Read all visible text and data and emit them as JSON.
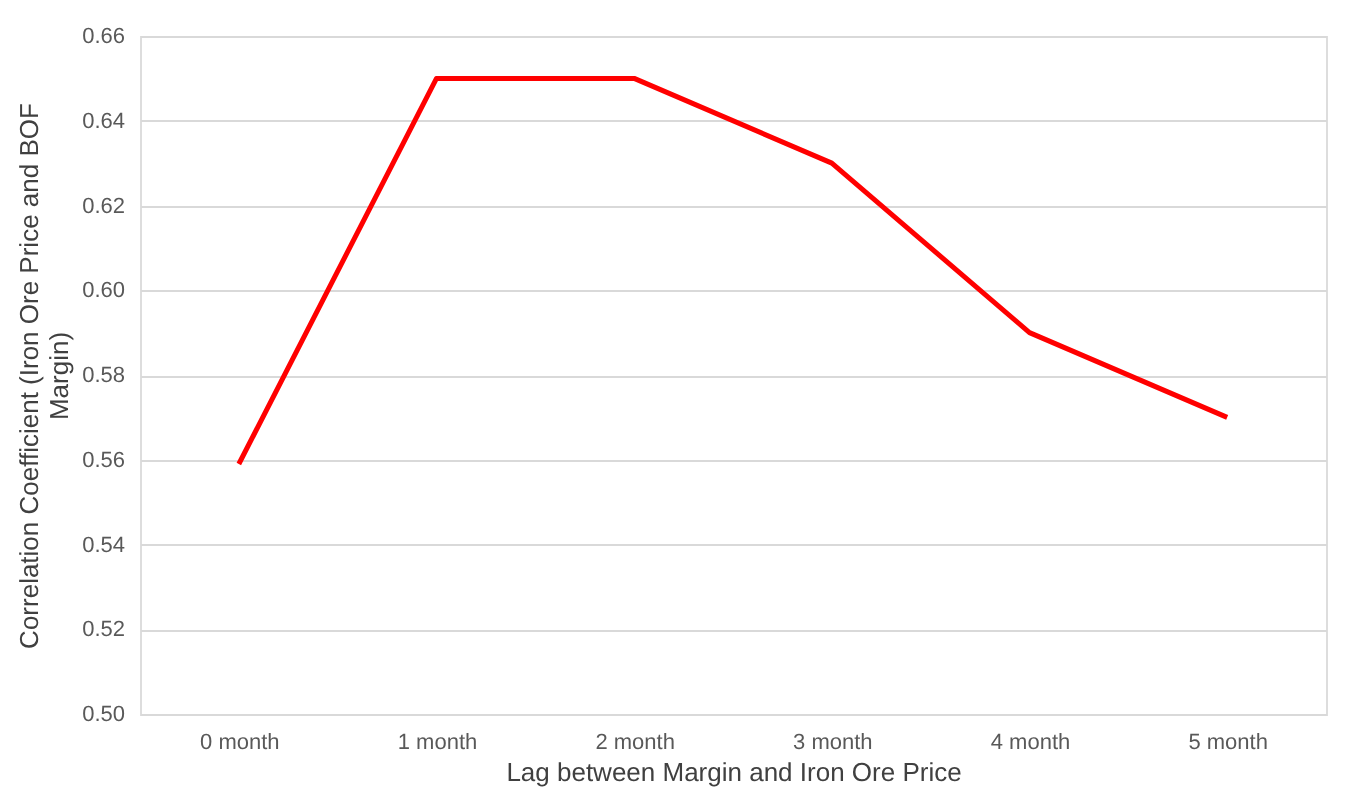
{
  "chart_data": {
    "type": "line",
    "xlabel": "Lag between Margin and Iron Ore Price",
    "ylabel": "Correlation Coefficient (Iron Ore Price and BOF Margin)",
    "categories": [
      "0 month",
      "1 month",
      "2 month",
      "3 month",
      "4 month",
      "5 month"
    ],
    "series": [
      {
        "color": "#ff0000",
        "values": [
          0.559,
          0.65,
          0.65,
          0.63,
          0.59,
          0.57
        ]
      }
    ],
    "ylim": [
      0.5,
      0.66
    ],
    "yticks": [
      {
        "value": 0.5,
        "label": "0.50"
      },
      {
        "value": 0.52,
        "label": "0.52"
      },
      {
        "value": 0.54,
        "label": "0.54"
      },
      {
        "value": 0.56,
        "label": "0.56"
      },
      {
        "value": 0.58,
        "label": "0.58"
      },
      {
        "value": 0.6,
        "label": "0.60"
      },
      {
        "value": 0.62,
        "label": "0.62"
      },
      {
        "value": 0.64,
        "label": "0.64"
      },
      {
        "value": 0.66,
        "label": "0.66"
      }
    ],
    "grid": "y",
    "marker": "none",
    "line_style": "solid"
  }
}
